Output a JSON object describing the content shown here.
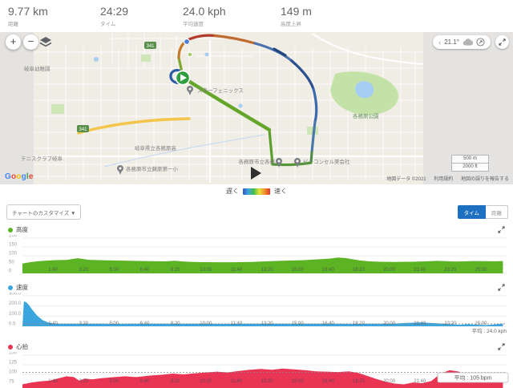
{
  "header": {
    "stats": [
      {
        "value": "9.77 km",
        "label": "距離"
      },
      {
        "value": "24:29",
        "label": "タイム"
      },
      {
        "value": "24.0 kph",
        "label": "平均速度"
      },
      {
        "value": "149 m",
        "label": "高度上昇"
      }
    ]
  },
  "map": {
    "zoom_in": "+",
    "zoom_out": "−",
    "weather": {
      "collapse_arrow": "‹",
      "temperature": "21.1°"
    },
    "scale_metric": "500 m",
    "scale_imperial": "2000 ft",
    "attribution": {
      "data": "地図データ ©2021",
      "terms": "利用規約",
      "report": "地図の誤りを報告する"
    },
    "google": "Google",
    "legend": {
      "slow": "遅く",
      "fast": "速く"
    },
    "shield": "341",
    "labels": [
      {
        "text": "岐阜幼稚園",
        "color": "#7d7d7d"
      },
      {
        "text": "テニスクラブ岐阜",
        "color": "#7d7d7d"
      },
      {
        "text": "各務原市立蘇原第一小",
        "color": "#7d7d7d"
      },
      {
        "text": "岐阜県立各務原高",
        "color": "#7d7d7d"
      },
      {
        "text": "スターフェニックス",
        "color": "#7d7d7d"
      },
      {
        "text": "各務原市立各務",
        "color": "#7d7d7d"
      },
      {
        "text": "ビーコンセル美会社",
        "color": "#7d7d7d"
      },
      {
        "text": "各務原公園",
        "color": "#5f8f55"
      }
    ]
  },
  "chart_controls": {
    "customize": "チャートのカスタマイズ ▼",
    "tabs": [
      {
        "label": "タイム",
        "active": true
      },
      {
        "label": "距離",
        "active": false
      }
    ]
  },
  "chart_data": [
    {
      "type": "area",
      "title": "高度",
      "unit": "m",
      "color": "#5cb324",
      "y_ticks": [
        "200",
        "150",
        "100",
        "50",
        "0"
      ],
      "x_range_minutes": [
        0,
        26.4
      ],
      "x_tick_labels": [
        "1:40",
        "3:20",
        "5:00",
        "6:40",
        "8:20",
        "10:00",
        "11:40",
        "13:20",
        "15:00",
        "16:40",
        "18:20",
        "20:00",
        "21:40",
        "23:20",
        "25:00"
      ],
      "x_minutes": [
        0,
        0.4,
        0.8,
        1.2,
        1.8,
        2.4,
        3.0,
        3.3,
        3.6,
        4.2,
        5.0,
        6.0,
        7.0,
        7.8,
        8.3,
        8.8,
        9.5,
        10.5,
        11.5,
        12.5,
        13.3,
        14.0,
        14.8,
        15.5,
        16.2,
        16.8,
        17.2,
        17.6,
        18.0,
        18.4,
        18.9,
        19.5,
        20.3,
        21.2,
        22.0,
        22.6,
        23.1,
        23.6,
        24.1,
        24.6,
        25.2,
        25.8,
        26.2
      ],
      "values": [
        56,
        63,
        68,
        72,
        75,
        76,
        86,
        82,
        77,
        75,
        73,
        71,
        69,
        68,
        72,
        67,
        64,
        63,
        63,
        65,
        68,
        71,
        73,
        76,
        80,
        84,
        90,
        87,
        80,
        73,
        68,
        66,
        65,
        66,
        68,
        71,
        69,
        67,
        68,
        70,
        69,
        68,
        70
      ],
      "average": null
    },
    {
      "type": "area",
      "title": "速度",
      "unit": "kph",
      "color": "#3aa6dd",
      "y_ticks": [
        "300.0",
        "200.0",
        "100.0",
        "0.0"
      ],
      "x_range_minutes": [
        0,
        26.4
      ],
      "x_tick_labels": [
        "1:40",
        "3:20",
        "5:00",
        "6:40",
        "8:20",
        "10:00",
        "11:40",
        "13:20",
        "15:00",
        "16:40",
        "18:20",
        "20:00",
        "21:40",
        "23:20",
        "25:00"
      ],
      "x_minutes": [
        0,
        0.08,
        0.2,
        0.35,
        0.55,
        0.8,
        1.1,
        1.4,
        1.7,
        2.2,
        3,
        4,
        5,
        6,
        7,
        8,
        9,
        10,
        11,
        12,
        13,
        14,
        15,
        16,
        17,
        18,
        19,
        20,
        20.6,
        21.1,
        21.6,
        22.1,
        22.6,
        23.1,
        23.5,
        23.9,
        24.3,
        24.8,
        25.3,
        25.8,
        26.2
      ],
      "values": [
        2,
        245,
        238,
        210,
        160,
        105,
        60,
        38,
        28,
        26,
        25,
        26,
        24,
        25,
        26,
        25,
        26,
        25,
        24,
        26,
        25,
        26,
        25,
        26,
        25,
        24,
        25,
        26,
        29,
        34,
        37,
        35,
        30,
        24,
        18,
        16,
        22,
        15,
        12,
        20,
        26
      ],
      "average": {
        "value": 24,
        "label": "平均 : 24.0 kph"
      }
    },
    {
      "type": "area",
      "title": "心拍",
      "unit": "bpm",
      "color": "#e93454",
      "y_ticks": [
        "150",
        "125",
        "100",
        "75"
      ],
      "x_range_minutes": [
        0,
        26.4
      ],
      "x_tick_labels": [
        "1:40",
        "3:20",
        "5:00",
        "6:40",
        "8:20",
        "10:00",
        "11:40",
        "13:20",
        "15:00",
        "16:40",
        "18:20",
        "20:00",
        "21:40",
        "23:20",
        "25:00"
      ],
      "x_minutes": [
        0,
        0.5,
        1.0,
        1.5,
        2.0,
        2.4,
        2.8,
        3.1,
        3.4,
        3.8,
        4.3,
        5.0,
        5.6,
        6.2,
        7.0,
        7.6,
        8.2,
        8.8,
        9.4,
        10.0,
        10.6,
        11.2,
        11.8,
        12.4,
        13.0,
        13.6,
        14.2,
        14.8,
        15.4,
        16.0,
        16.6,
        17.2,
        17.8,
        18.3,
        18.8,
        19.3,
        19.8,
        20.3,
        20.8,
        21.3,
        21.8,
        22.3,
        22.8,
        23.3,
        23.8,
        24.2,
        24.7,
        25.2,
        25.7,
        26.2
      ],
      "values": [
        74,
        79,
        82,
        84,
        90,
        95,
        93,
        84,
        89,
        87,
        90,
        93,
        95,
        93,
        97,
        99,
        102,
        100,
        103,
        105,
        107,
        105,
        109,
        112,
        114,
        112,
        115,
        113,
        111,
        108,
        107,
        106,
        108,
        104,
        96,
        88,
        81,
        76,
        74,
        79,
        77,
        83,
        102,
        111,
        107,
        98,
        104,
        100,
        96,
        103
      ],
      "average": {
        "value": 105,
        "label": "平均 : 105 bpm"
      }
    }
  ],
  "colors": {
    "accent_blue": "#1d6fc2",
    "elevation": "#5cb324",
    "speed": "#3aa6dd",
    "heart_rate": "#e93454"
  }
}
